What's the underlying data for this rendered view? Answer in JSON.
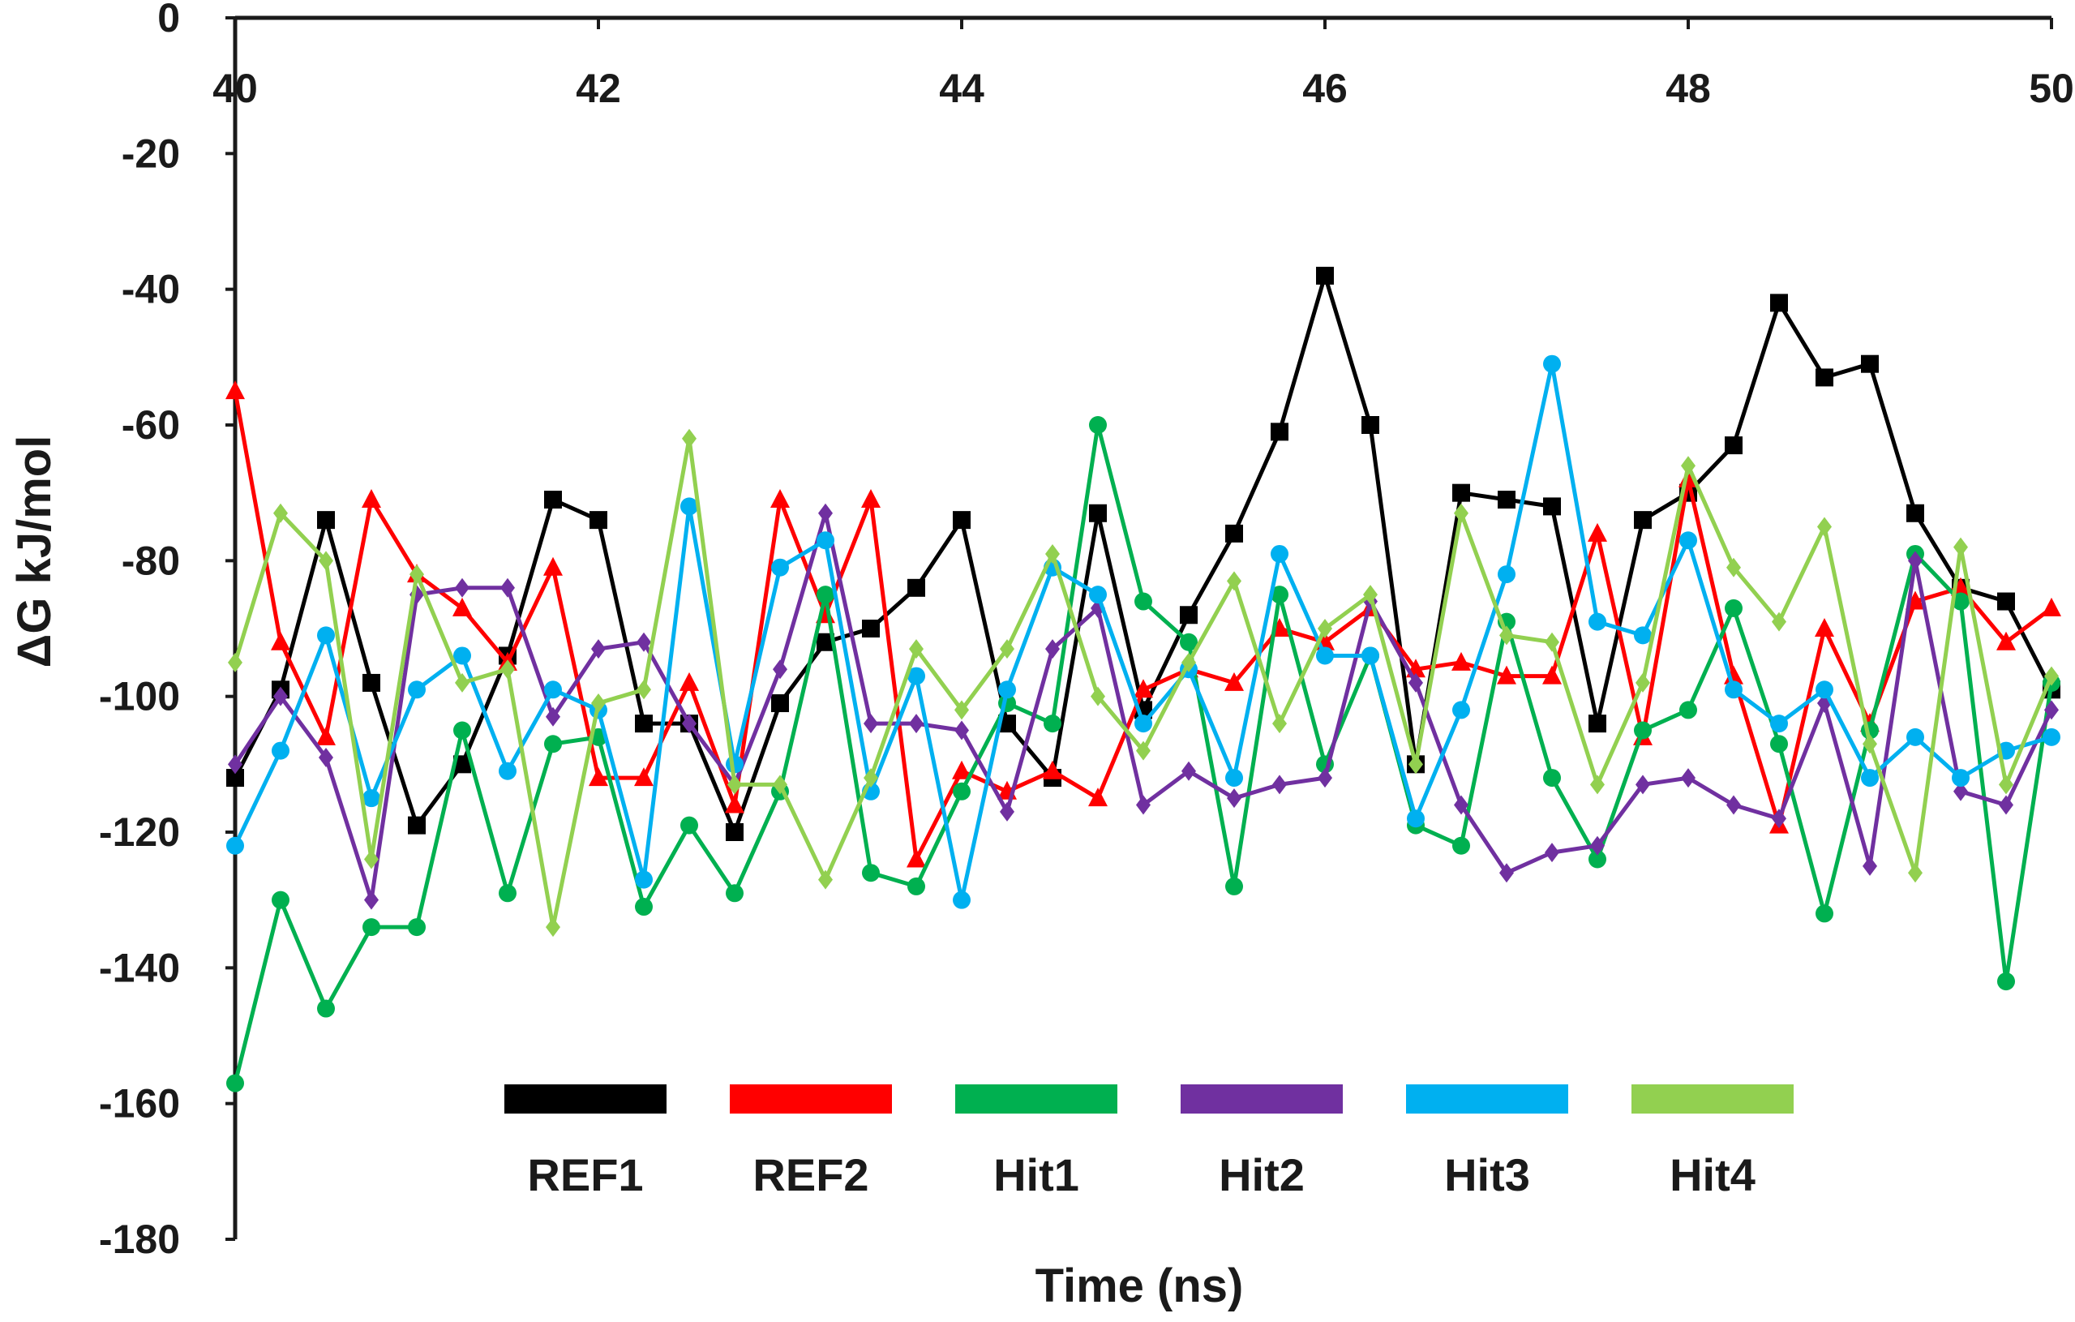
{
  "chart_data": {
    "type": "line",
    "title": "",
    "xlabel": "Time (ns)",
    "ylabel": "ΔG kJ/mol",
    "xlim": [
      40,
      50
    ],
    "ylim": [
      -180,
      0
    ],
    "x_ticks": [
      "40",
      "42",
      "44",
      "46",
      "48",
      "50"
    ],
    "x_tick_values": [
      40,
      42,
      44,
      46,
      48,
      50
    ],
    "y_ticks": [
      "0",
      "-20",
      "-40",
      "-60",
      "-80",
      "-100",
      "-120",
      "-140",
      "-160",
      "-180"
    ],
    "y_tick_values": [
      0,
      -20,
      -40,
      -60,
      -80,
      -100,
      -120,
      -140,
      -160,
      -180
    ],
    "x_axis_position": "top",
    "legend_position": "bottom-center",
    "x": [
      40,
      40.25,
      40.5,
      40.75,
      41,
      41.25,
      41.5,
      41.75,
      42,
      42.25,
      42.5,
      42.75,
      43,
      43.25,
      43.5,
      43.75,
      44,
      44.25,
      44.5,
      44.75,
      45,
      45.25,
      45.5,
      45.75,
      46,
      46.25,
      46.5,
      46.75,
      47,
      47.25,
      47.5,
      47.75,
      48,
      48.25,
      48.5,
      48.75,
      49,
      49.25,
      49.5,
      49.75,
      50
    ],
    "series": [
      {
        "name": "REF1",
        "color": "#000000",
        "marker": "square",
        "values": [
          -112,
          -99,
          -74,
          -98,
          -119,
          -110,
          -94,
          -71,
          -74,
          -104,
          -104,
          -120,
          -101,
          -92,
          -90,
          -84,
          -74,
          -104,
          -112,
          -73,
          -102,
          -88,
          -76,
          -61,
          -38,
          -60,
          -110,
          -70,
          -71,
          -72,
          -104,
          -74,
          -70,
          -63,
          -42,
          -53,
          -51,
          -73,
          -84,
          -86,
          -99
        ]
      },
      {
        "name": "REF2",
        "color": "#ff0000",
        "marker": "triangle",
        "values": [
          -55,
          -92,
          -106,
          -71,
          -82,
          -87,
          -95,
          -81,
          -112,
          -112,
          -98,
          -116,
          -71,
          -88,
          -71,
          -124,
          -111,
          -114,
          -111,
          -115,
          -99,
          -96,
          -98,
          -90,
          -92,
          -87,
          -96,
          -95,
          -97,
          -97,
          -76,
          -106,
          -68,
          -97,
          -119,
          -90,
          -104,
          -86,
          -84,
          -92,
          -87
        ]
      },
      {
        "name": "Hit1",
        "color": "#00b050",
        "marker": "circle",
        "values": [
          -157,
          -130,
          -146,
          -134,
          -134,
          -105,
          -129,
          -107,
          -106,
          -131,
          -119,
          -129,
          -114,
          -85,
          -126,
          -128,
          -114,
          -101,
          -104,
          -60,
          -86,
          -92,
          -128,
          -85,
          -110,
          -94,
          -119,
          -122,
          -89,
          -112,
          -124,
          -105,
          -102,
          -87,
          -107,
          -132,
          -105,
          -79,
          -86,
          -142,
          -98
        ]
      },
      {
        "name": "Hit2",
        "color": "#7030a0",
        "marker": "diamond",
        "values": [
          -110,
          -100,
          -109,
          -130,
          -85,
          -84,
          -84,
          -103,
          -93,
          -92,
          -104,
          -113,
          -96,
          -73,
          -104,
          -104,
          -105,
          -117,
          -93,
          -87,
          -116,
          -111,
          -115,
          -113,
          -112,
          -86,
          -98,
          -116,
          -126,
          -123,
          -122,
          -113,
          -112,
          -116,
          -118,
          -101,
          -125,
          -80,
          -114,
          -116,
          -102
        ]
      },
      {
        "name": "Hit3",
        "color": "#00b0f0",
        "marker": "circle",
        "values": [
          -122,
          -108,
          -91,
          -115,
          -99,
          -94,
          -111,
          -99,
          -102,
          -127,
          -72,
          -110,
          -81,
          -77,
          -114,
          -97,
          -130,
          -99,
          -81,
          -85,
          -104,
          -96,
          -112,
          -79,
          -94,
          -94,
          -118,
          -102,
          -82,
          -51,
          -89,
          -91,
          -77,
          -99,
          -104,
          -99,
          -112,
          -106,
          -112,
          -108,
          -106
        ]
      },
      {
        "name": "Hit4",
        "color": "#92d050",
        "marker": "diamond",
        "values": [
          -95,
          -73,
          -80,
          -124,
          -82,
          -98,
          -96,
          -134,
          -101,
          -99,
          -62,
          -113,
          -113,
          -127,
          -112,
          -93,
          -102,
          -93,
          -79,
          -100,
          -108,
          -95,
          -83,
          -104,
          -90,
          -85,
          -110,
          -73,
          -91,
          -92,
          -113,
          -98,
          -66,
          -81,
          -89,
          -75,
          -107,
          -126,
          -78,
          -113,
          -97
        ]
      }
    ]
  }
}
